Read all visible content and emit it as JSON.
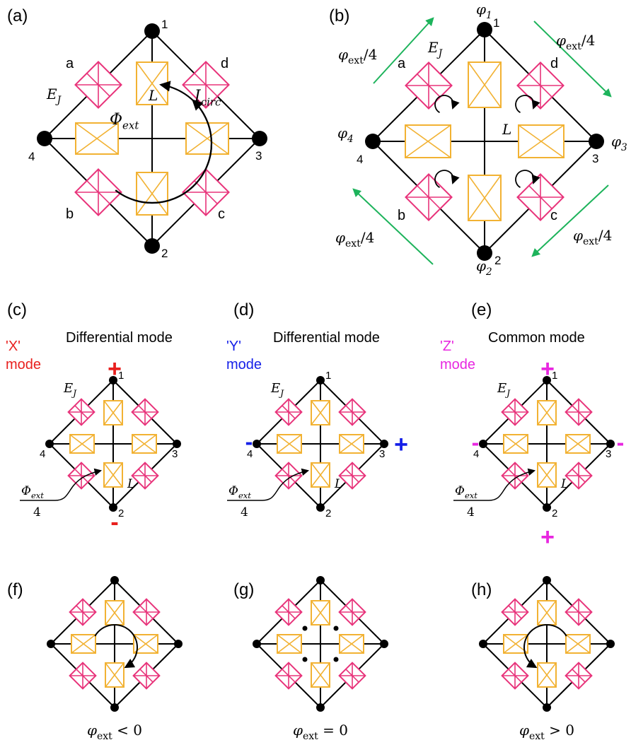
{
  "colors": {
    "junction": "#e8337a",
    "inductor": "#f2b233",
    "wire": "#000000",
    "node": "#000000",
    "arrow_green": "#1db35b",
    "x_mode": "#e8201e",
    "y_mode": "#1520e8",
    "z_mode": "#e827e0"
  },
  "icons": [
    "josephson-junction-icon",
    "inductor-icon",
    "circulation-arrow-icon",
    "node-dot-icon"
  ],
  "panel_a": {
    "label": "(a)",
    "nodes": [
      "1",
      "2",
      "3",
      "4"
    ],
    "junctions": [
      "a",
      "b",
      "c",
      "d"
    ],
    "ej": "E",
    "ej_sub": "J",
    "inductor": "L",
    "phi_ext": "Φ",
    "phi_ext_sub": "ext",
    "i_circ": "I",
    "i_circ_sub": "circ"
  },
  "panel_b": {
    "label": "(b)",
    "nodes": [
      "1",
      "2",
      "3",
      "4"
    ],
    "junctions": [
      "a",
      "b",
      "c",
      "d"
    ],
    "phases": [
      "φ",
      "φ",
      "φ",
      "φ"
    ],
    "phase_subs": [
      "1",
      "2",
      "3",
      "4"
    ],
    "ej": "E",
    "ej_sub": "J",
    "inductor": "L",
    "flux_labels": [
      "φ",
      "φ",
      "φ",
      "φ"
    ],
    "flux_sub": "ext",
    "flux_frac": "/4"
  },
  "panel_c": {
    "label": "(c)",
    "title": "Differential mode",
    "mode_name": "'X'",
    "mode_word": "mode",
    "signs": [
      "+",
      "-"
    ],
    "flux_num": "Φ",
    "flux_num_sub": "ext",
    "flux_den": "4",
    "nodes": [
      "1",
      "2",
      "3",
      "4"
    ],
    "ej": "E",
    "ej_sub": "J",
    "inductor": "L"
  },
  "panel_d": {
    "label": "(d)",
    "title": "Differential mode",
    "mode_name": "'Y'",
    "mode_word": "mode",
    "signs": [
      "-",
      "+"
    ],
    "flux_num": "Φ",
    "flux_num_sub": "ext",
    "flux_den": "4",
    "nodes": [
      "1",
      "2",
      "3",
      "4"
    ],
    "ej": "E",
    "ej_sub": "J",
    "inductor": "L"
  },
  "panel_e": {
    "label": "(e)",
    "title": "Common mode",
    "mode_name": "'Z'",
    "mode_word": "mode",
    "signs": [
      "+",
      "+",
      "-",
      "-"
    ],
    "flux_num": "Φ",
    "flux_num_sub": "ext",
    "flux_den": "4",
    "nodes": [
      "1",
      "2",
      "3",
      "4"
    ],
    "ej": "E",
    "ej_sub": "J",
    "inductor": "L"
  },
  "panel_f": {
    "label": "(f)",
    "caption_sym": "φ",
    "caption_sub": "ext",
    "caption_rel": " < 0"
  },
  "panel_g": {
    "label": "(g)",
    "caption_sym": "φ",
    "caption_sub": "ext",
    "caption_rel": " = 0"
  },
  "panel_h": {
    "label": "(h)",
    "caption_sym": "φ",
    "caption_sub": "ext",
    "caption_rel": " > 0"
  }
}
